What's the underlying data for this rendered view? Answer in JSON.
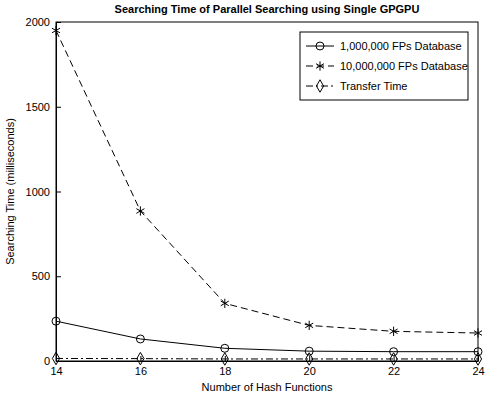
{
  "chart_data": {
    "type": "line",
    "title": "Searching Time of Parallel Searching using Single GPGPU",
    "x_label": "Number of Hash Functions",
    "y_label": "Searching Time (milliseconds)",
    "x": [
      14,
      16,
      18,
      20,
      22,
      24
    ],
    "xlim": [
      14,
      24
    ],
    "xticks": [
      14,
      16,
      18,
      20,
      22,
      24
    ],
    "ylim": [
      0,
      2000
    ],
    "yticks": [
      0,
      500,
      1000,
      1500,
      2000
    ],
    "grid": false,
    "legend": "top-right",
    "series": [
      {
        "name": "1,000,000 FPs Database",
        "color": "#000000",
        "marker": "circle",
        "line_style": "solid",
        "values": [
          235,
          130,
          75,
          58,
          55,
          55
        ]
      },
      {
        "name": "10,000,000 FPs Database",
        "color": "#000000",
        "marker": "asterisk",
        "line_style": "dashed",
        "values": [
          1950,
          885,
          340,
          210,
          175,
          165
        ]
      },
      {
        "name": "Transfer Time",
        "color": "#000000",
        "marker": "diamond",
        "line_style": "dashdot",
        "values": [
          15,
          14,
          12,
          12,
          12,
          12
        ]
      }
    ]
  }
}
